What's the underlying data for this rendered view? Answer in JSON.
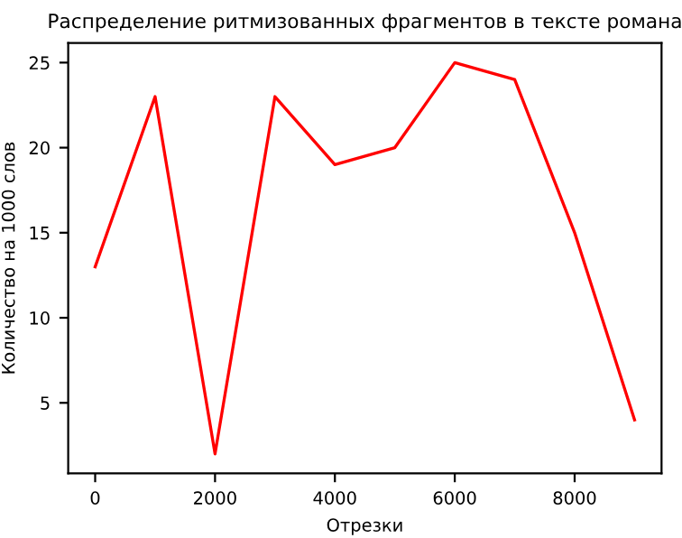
{
  "chart_data": {
    "type": "line",
    "title": "Распределение ритмизованных фрагментов в тексте романа",
    "xlabel": "Отрезки",
    "ylabel": "Количество на 1000 слов",
    "x": [
      0,
      1000,
      2000,
      3000,
      4000,
      5000,
      6000,
      7000,
      8000,
      9000
    ],
    "series": [
      {
        "color": "#ff0000",
        "values": [
          13,
          23,
          2,
          23,
          19,
          20,
          25,
          24,
          15,
          4
        ]
      }
    ],
    "xlim": [
      -450,
      9450
    ],
    "ylim": [
      0.85,
      26.15
    ],
    "xticks": [
      0,
      2000,
      4000,
      6000,
      8000
    ],
    "yticks": [
      5,
      10,
      15,
      20,
      25
    ],
    "grid": false,
    "legend": false,
    "marker": "none",
    "line_style": "solid"
  }
}
